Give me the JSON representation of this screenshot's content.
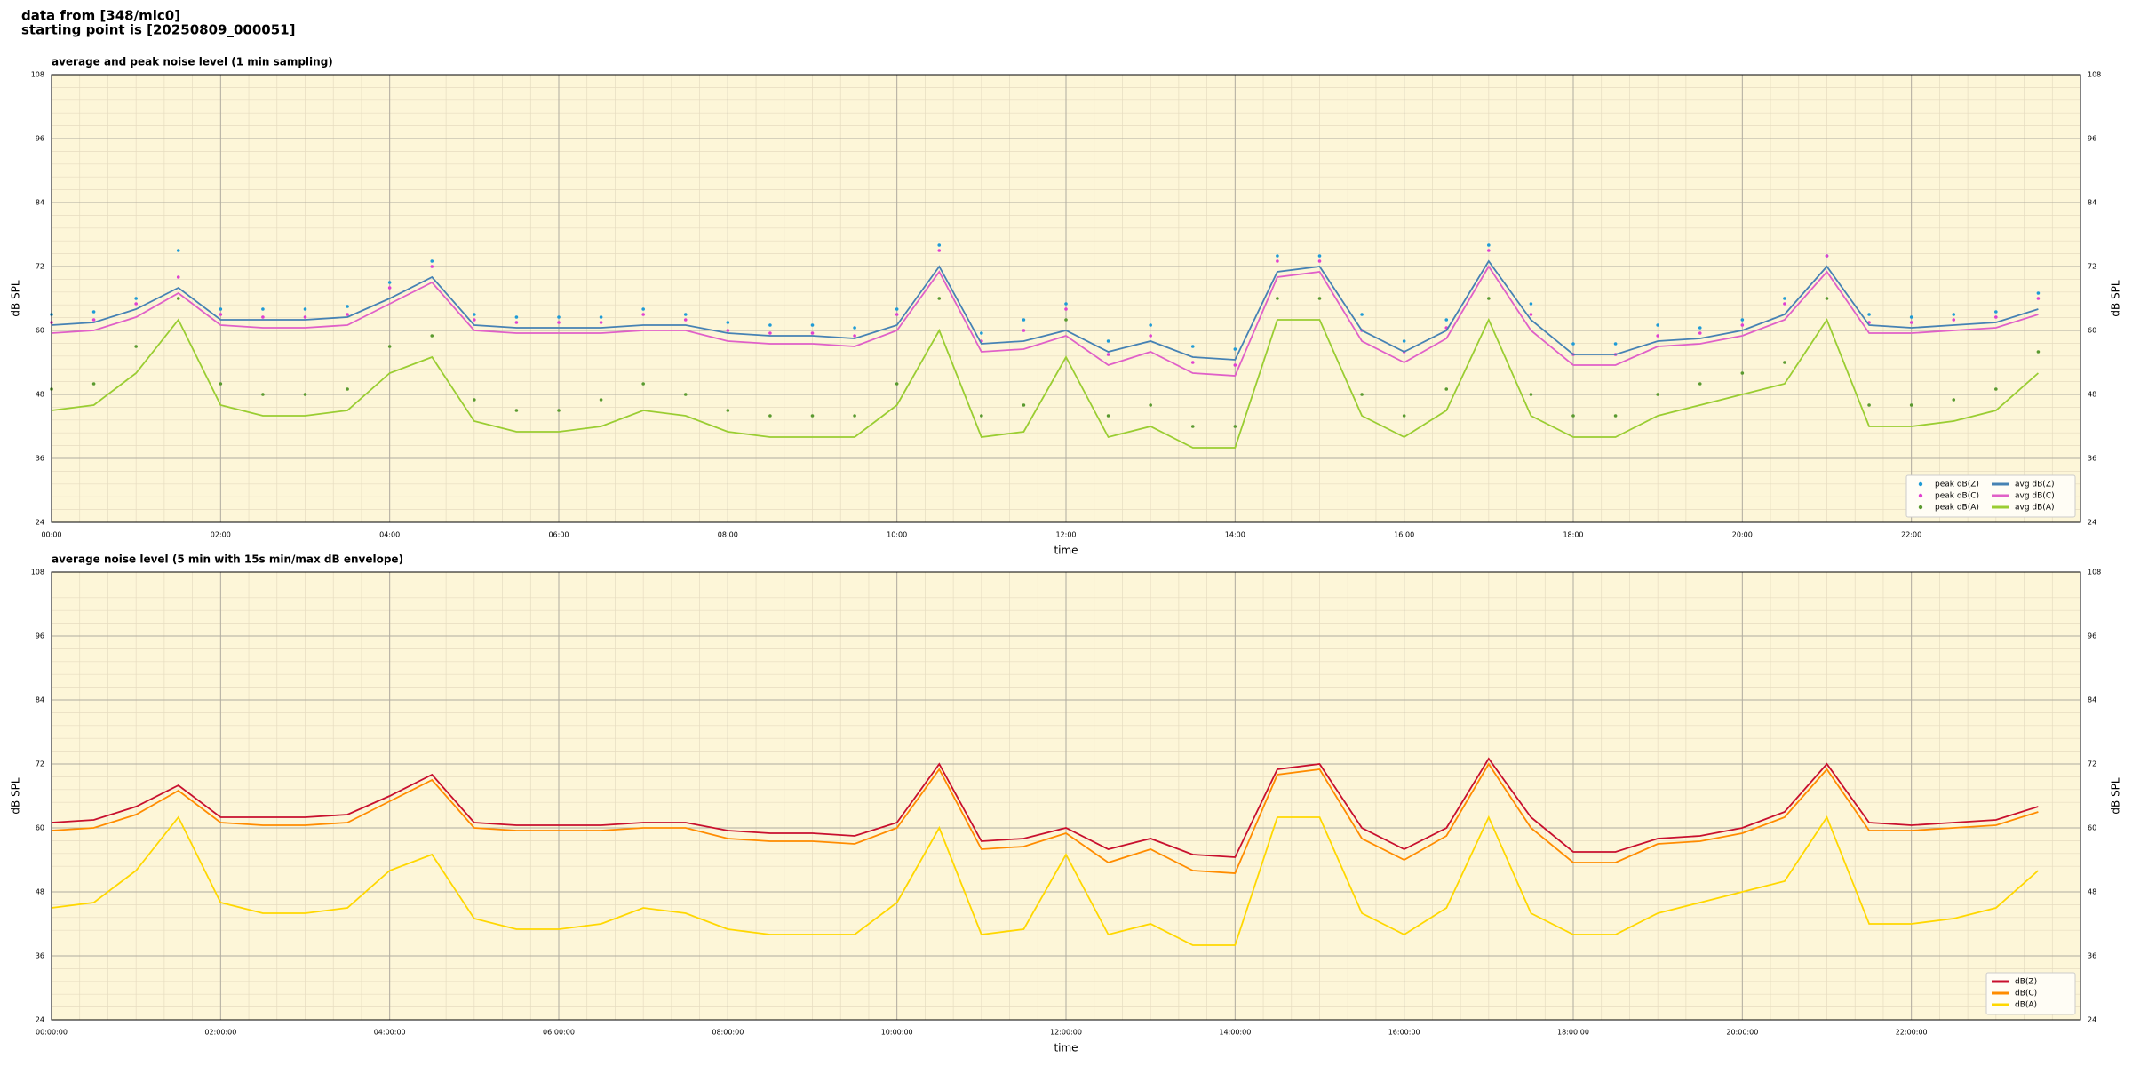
{
  "header": {
    "source": "data from [348/mic0]",
    "start": "starting point is [20250809_000051]"
  },
  "chart_data": [
    {
      "type": "line",
      "title": "average and peak noise level (1 min sampling)",
      "x_label": "time",
      "y_label": "dB SPL",
      "xlim": [
        "00:00",
        "24:00"
      ],
      "xticks": [
        "00:00",
        "02:00",
        "04:00",
        "06:00",
        "08:00",
        "10:00",
        "12:00",
        "14:00",
        "16:00",
        "18:00",
        "20:00",
        "22:00"
      ],
      "ylim": [
        24,
        108
      ],
      "yticks": [
        24,
        36,
        48,
        60,
        72,
        84,
        96,
        108
      ],
      "grid": true,
      "legend": "lower right",
      "legend_columns": 2,
      "x": [
        "00:00",
        "00:30",
        "01:00",
        "01:30",
        "02:00",
        "02:30",
        "03:00",
        "03:30",
        "04:00",
        "04:30",
        "05:00",
        "05:30",
        "06:00",
        "06:30",
        "07:00",
        "07:30",
        "08:00",
        "08:30",
        "09:00",
        "09:30",
        "10:00",
        "10:30",
        "11:00",
        "11:30",
        "12:00",
        "12:30",
        "13:00",
        "13:30",
        "14:00",
        "14:30",
        "15:00",
        "15:30",
        "16:00",
        "16:30",
        "17:00",
        "17:30",
        "18:00",
        "18:30",
        "19:00",
        "19:30",
        "20:00",
        "20:30",
        "21:00",
        "21:30",
        "22:00",
        "22:30",
        "23:00",
        "23:30"
      ],
      "series": [
        {
          "name": "peak dB(Z)",
          "style": "dots",
          "color": "#1f9bd6",
          "values": [
            63,
            63.5,
            66,
            75,
            64,
            64,
            64,
            64.5,
            69,
            73,
            63,
            62.5,
            62.5,
            62.5,
            64,
            63,
            61.5,
            61,
            61,
            60.5,
            64,
            76,
            59.5,
            62,
            65,
            58,
            61,
            57,
            56.5,
            74,
            74,
            63,
            58,
            62,
            76,
            65,
            57.5,
            57.5,
            61,
            60.5,
            62,
            66,
            74,
            63,
            62.5,
            63,
            63.5,
            67
          ]
        },
        {
          "name": "peak dB(C)",
          "style": "dots",
          "color": "#e040d0",
          "values": [
            61.5,
            62,
            65,
            70,
            63,
            62.5,
            62.5,
            63,
            68,
            72,
            62,
            61.5,
            61.5,
            61.5,
            63,
            62,
            60,
            59.5,
            59.5,
            59,
            63,
            75,
            58,
            60,
            64,
            55.5,
            59,
            54,
            53.5,
            73,
            73,
            60,
            56,
            60.5,
            75,
            63,
            55.5,
            55.5,
            59,
            59.5,
            61,
            65,
            74,
            61.5,
            61.5,
            62,
            62.5,
            66
          ]
        },
        {
          "name": "peak dB(A)",
          "style": "dots",
          "color": "#5a9a30",
          "values": [
            49,
            50,
            57,
            66,
            50,
            48,
            48,
            49,
            57,
            59,
            47,
            45,
            45,
            47,
            50,
            48,
            45,
            44,
            44,
            44,
            50,
            66,
            44,
            46,
            62,
            44,
            46,
            42,
            42,
            66,
            66,
            48,
            44,
            49,
            66,
            48,
            44,
            44,
            48,
            50,
            52,
            54,
            66,
            46,
            46,
            47,
            49,
            56
          ]
        },
        {
          "name": "avg dB(Z)",
          "style": "line",
          "color": "#4682b4",
          "values": [
            61,
            61.5,
            64,
            68,
            62,
            62,
            62,
            62.5,
            66,
            70,
            61,
            60.5,
            60.5,
            60.5,
            61,
            61,
            59.5,
            59,
            59,
            58.5,
            61,
            72,
            57.5,
            58,
            60,
            56,
            58,
            55,
            54.5,
            71,
            72,
            60,
            56,
            60,
            73,
            62,
            55.5,
            55.5,
            58,
            58.5,
            60,
            63,
            72,
            61,
            60.5,
            61,
            61.5,
            64
          ]
        },
        {
          "name": "avg dB(C)",
          "style": "line",
          "color": "#e060c8",
          "values": [
            59.5,
            60,
            62.5,
            67,
            61,
            60.5,
            60.5,
            61,
            65,
            69,
            60,
            59.5,
            59.5,
            59.5,
            60,
            60,
            58,
            57.5,
            57.5,
            57,
            60,
            71,
            56,
            56.5,
            59,
            53.5,
            56,
            52,
            51.5,
            70,
            71,
            58,
            54,
            58.5,
            72,
            60,
            53.5,
            53.5,
            57,
            57.5,
            59,
            62,
            71,
            59.5,
            59.5,
            60,
            60.5,
            63
          ]
        },
        {
          "name": "avg dB(A)",
          "style": "line",
          "color": "#9acd32",
          "values": [
            45,
            46,
            52,
            62,
            46,
            44,
            44,
            45,
            52,
            55,
            43,
            41,
            41,
            42,
            45,
            44,
            41,
            40,
            40,
            40,
            46,
            60,
            40,
            41,
            55,
            40,
            42,
            38,
            38,
            62,
            62,
            44,
            40,
            45,
            62,
            44,
            40,
            40,
            44,
            46,
            48,
            50,
            62,
            42,
            42,
            43,
            45,
            52
          ]
        }
      ]
    },
    {
      "type": "line",
      "title": "average noise level (5 min with 15s min/max dB envelope)",
      "x_label": "time",
      "y_label": "dB SPL",
      "xlim": [
        "00:00:00",
        "24:00:00"
      ],
      "xticks": [
        "00:00:00",
        "02:00:00",
        "04:00:00",
        "06:00:00",
        "08:00:00",
        "10:00:00",
        "12:00:00",
        "14:00:00",
        "16:00:00",
        "18:00:00",
        "20:00:00",
        "22:00:00"
      ],
      "ylim": [
        24,
        108
      ],
      "yticks": [
        24,
        36,
        48,
        60,
        72,
        84,
        96,
        108
      ],
      "grid": true,
      "legend": "lower right",
      "legend_columns": 1,
      "x": [
        "00:00:00",
        "00:30:00",
        "01:00:00",
        "01:30:00",
        "02:00:00",
        "02:30:00",
        "03:00:00",
        "03:30:00",
        "04:00:00",
        "04:30:00",
        "05:00:00",
        "05:30:00",
        "06:00:00",
        "06:30:00",
        "07:00:00",
        "07:30:00",
        "08:00:00",
        "08:30:00",
        "09:00:00",
        "09:30:00",
        "10:00:00",
        "10:30:00",
        "11:00:00",
        "11:30:00",
        "12:00:00",
        "12:30:00",
        "13:00:00",
        "13:30:00",
        "14:00:00",
        "14:30:00",
        "15:00:00",
        "15:30:00",
        "16:00:00",
        "16:30:00",
        "17:00:00",
        "17:30:00",
        "18:00:00",
        "18:30:00",
        "19:00:00",
        "19:30:00",
        "20:00:00",
        "20:30:00",
        "21:00:00",
        "21:30:00",
        "22:00:00",
        "22:30:00",
        "23:00:00",
        "23:30:00"
      ],
      "series": [
        {
          "name": "dB(Z)",
          "style": "line",
          "color": "#c8102e",
          "values": [
            61,
            61.5,
            64,
            68,
            62,
            62,
            62,
            62.5,
            66,
            70,
            61,
            60.5,
            60.5,
            60.5,
            61,
            61,
            59.5,
            59,
            59,
            58.5,
            61,
            72,
            57.5,
            58,
            60,
            56,
            58,
            55,
            54.5,
            71,
            72,
            60,
            56,
            60,
            73,
            62,
            55.5,
            55.5,
            58,
            58.5,
            60,
            63,
            72,
            61,
            60.5,
            61,
            61.5,
            64
          ]
        },
        {
          "name": "dB(C)",
          "style": "line",
          "color": "#ff8c00",
          "values": [
            59.5,
            60,
            62.5,
            67,
            61,
            60.5,
            60.5,
            61,
            65,
            69,
            60,
            59.5,
            59.5,
            59.5,
            60,
            60,
            58,
            57.5,
            57.5,
            57,
            60,
            71,
            56,
            56.5,
            59,
            53.5,
            56,
            52,
            51.5,
            70,
            71,
            58,
            54,
            58.5,
            72,
            60,
            53.5,
            53.5,
            57,
            57.5,
            59,
            62,
            71,
            59.5,
            59.5,
            60,
            60.5,
            63
          ]
        },
        {
          "name": "dB(A)",
          "style": "line",
          "color": "#ffd700",
          "values": [
            45,
            46,
            52,
            62,
            46,
            44,
            44,
            45,
            52,
            55,
            43,
            41,
            41,
            42,
            45,
            44,
            41,
            40,
            40,
            40,
            46,
            60,
            40,
            41,
            55,
            40,
            42,
            38,
            38,
            62,
            62,
            44,
            40,
            45,
            62,
            44,
            40,
            40,
            44,
            46,
            48,
            50,
            62,
            42,
            42,
            43,
            45,
            52
          ]
        }
      ]
    }
  ]
}
